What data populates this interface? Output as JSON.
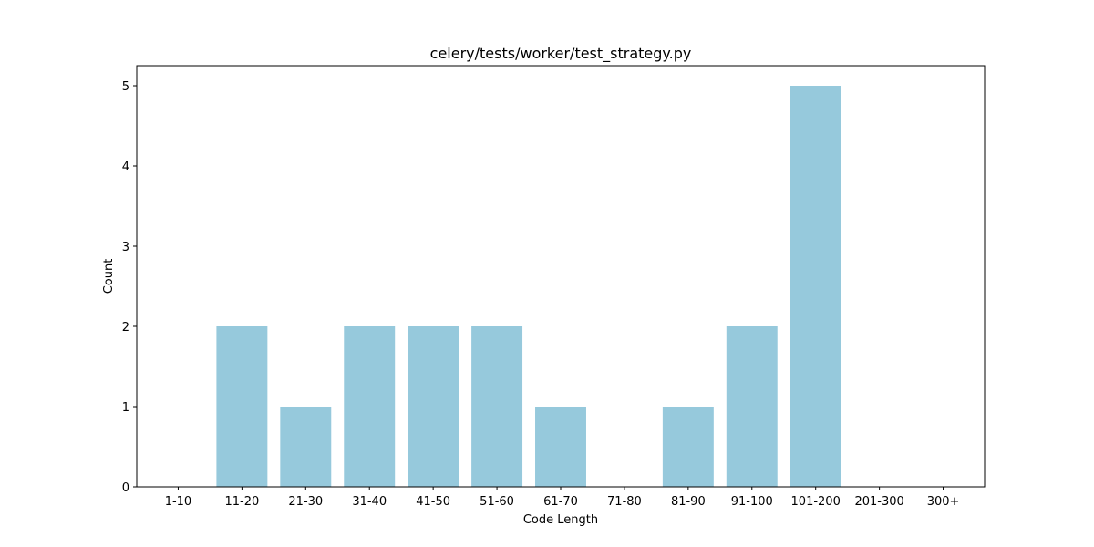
{
  "chart_data": {
    "type": "bar",
    "title": "celery/tests/worker/test_strategy.py",
    "xlabel": "Code Length",
    "ylabel": "Count",
    "categories": [
      "1-10",
      "11-20",
      "21-30",
      "31-40",
      "41-50",
      "51-60",
      "61-70",
      "71-80",
      "81-90",
      "91-100",
      "101-200",
      "201-300",
      "300+"
    ],
    "values": [
      0,
      2,
      1,
      2,
      2,
      2,
      1,
      0,
      1,
      2,
      5,
      0,
      0
    ],
    "ylim": [
      0,
      5.25
    ],
    "yticks": [
      0,
      1,
      2,
      3,
      4,
      5
    ],
    "bar_color": "#96c9dc",
    "grid": false,
    "legend": "none"
  }
}
